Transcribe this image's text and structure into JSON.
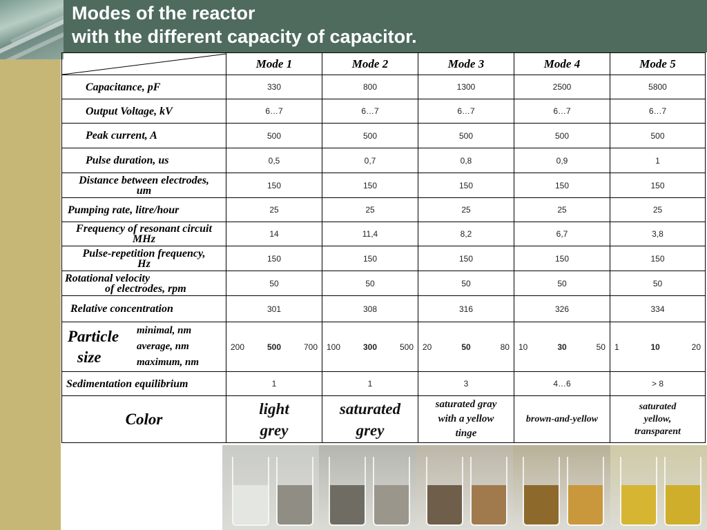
{
  "title": {
    "line1": "Modes of the reactor",
    "line2": "with the different capacity of capacitor."
  },
  "modes": [
    "Mode 1",
    "Mode 2",
    "Mode 3",
    "Mode 4",
    "Mode 5"
  ],
  "rows": [
    {
      "label": "Capacitance, pF",
      "values": [
        "330",
        "800",
        "1300",
        "2500",
        "5800"
      ]
    },
    {
      "label": "Output Voltage, kV",
      "values": [
        "6…7",
        "6…7",
        "6…7",
        "6…7",
        "6…7"
      ]
    },
    {
      "label": "Peak current, A",
      "values": [
        "500",
        "500",
        "500",
        "500",
        "500"
      ]
    },
    {
      "label": "Pulse duration, us",
      "values": [
        "0,5",
        "0,7",
        "0,8",
        "0,9",
        "1"
      ]
    },
    {
      "label_l1": "Distance between electrodes,",
      "label_l2": "um",
      "values": [
        "150",
        "150",
        "150",
        "150",
        "150"
      ]
    },
    {
      "label": "Pumping rate, litre/hour",
      "values": [
        "25",
        "25",
        "25",
        "25",
        "25"
      ]
    },
    {
      "label_l1": "Frequency of resonant circuit",
      "label_l2": "MHz",
      "values": [
        "14",
        "11,4",
        "8,2",
        "6,7",
        "3,8"
      ]
    },
    {
      "label_l1": "Pulse-repetition frequency,",
      "label_l2": "Hz",
      "values": [
        "150",
        "150",
        "150",
        "150",
        "150"
      ]
    },
    {
      "label_l1": "Rotational velocity",
      "label_l2": "of electrodes, rpm",
      "values": [
        "50",
        "50",
        "50",
        "50",
        "50"
      ]
    },
    {
      "label": "Relative concentration",
      "values": [
        "301",
        "308",
        "316",
        "326",
        "334"
      ]
    }
  ],
  "particle": {
    "label_l1": "Particle",
    "label_l2": "size",
    "sub": [
      "minimal, nm",
      "average, nm",
      "maximum, nm"
    ],
    "values": [
      [
        "200",
        "500",
        "700"
      ],
      [
        "100",
        "300",
        "500"
      ],
      [
        "20",
        "50",
        "80"
      ],
      [
        "10",
        "30",
        "50"
      ],
      [
        "1",
        "10",
        "20"
      ]
    ]
  },
  "sedimentation": {
    "label": "Sedimentation equilibrium",
    "values": [
      "1",
      "1",
      "3",
      "4…6",
      "> 8"
    ]
  },
  "color_row": {
    "label": "Color",
    "values": [
      [
        "light",
        "grey"
      ],
      [
        "saturated",
        "grey"
      ],
      [
        "saturated gray",
        "with a yellow",
        "tinge"
      ],
      [
        "brown-and-yellow"
      ],
      [
        "saturated",
        "yellow,",
        "transparent"
      ]
    ]
  },
  "photo_colors": [
    {
      "bg": "#c9cbc6",
      "left": "#e4e6e2",
      "right": "#8f8d84"
    },
    {
      "bg": "#b6b6b0",
      "left": "#6f6c63",
      "right": "#9a968c"
    },
    {
      "bg": "#bdb7a8",
      "left": "#6e5e4a",
      "right": "#a07a4c"
    },
    {
      "bg": "#b9b198",
      "left": "#8d6a2c",
      "right": "#c9973c"
    },
    {
      "bg": "#cfcaa6",
      "left": "#d6b533",
      "right": "#cfae2c"
    }
  ]
}
